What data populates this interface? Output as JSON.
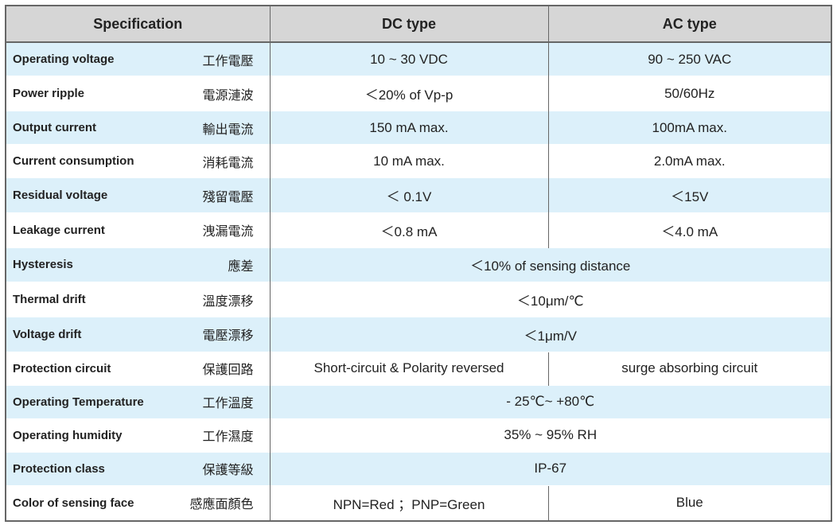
{
  "header": [
    "Specification",
    "DC type",
    "AC type"
  ],
  "rows": [
    [
      "Operating voltage",
      "工作電壓",
      "10 ~ 30 VDC",
      "90 ~ 250 VAC"
    ],
    [
      "Power ripple",
      "電源漣波",
      "＜20% of Vp-p",
      "50/60Hz"
    ],
    [
      "Output current",
      "輸出電流",
      "150 mA max.",
      "100mA max."
    ],
    [
      "Current consumption",
      "消耗電流",
      "10 mA max.",
      "2.0mA max."
    ],
    [
      "Residual voltage",
      "殘留電壓",
      "＜ 0.1V",
      "＜15V"
    ],
    [
      "Leakage current",
      "洩漏電流",
      "＜0.8 mA",
      "＜4.0 mA"
    ],
    [
      "Hysteresis",
      "應差",
      "＜10% of sensing distance"
    ],
    [
      "Thermal drift",
      "溫度漂移",
      "＜10μm/℃"
    ],
    [
      "Voltage drift",
      "電壓漂移",
      "＜1μm/V"
    ],
    [
      "Protection circuit",
      "保護回路",
      "Short-circuit & Polarity reversed",
      "surge absorbing circuit"
    ],
    [
      "Operating Temperature",
      "工作溫度",
      "- 25℃~ +80℃"
    ],
    [
      "Operating humidity",
      "工作濕度",
      "35% ~ 95% RH"
    ],
    [
      "Protection class",
      "保護等級",
      "IP-67"
    ],
    [
      "Color of sensing face",
      "感應面顏色",
      "NPN=Red ；PNP=Green",
      "Blue"
    ]
  ]
}
